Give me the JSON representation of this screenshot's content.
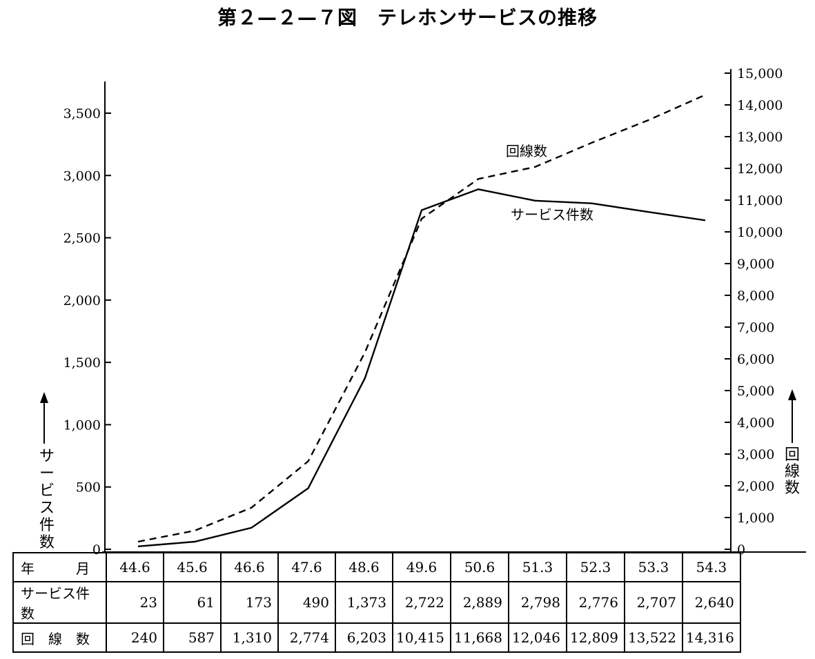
{
  "title": "第２—２—７図　テレホンサービスの推移",
  "chart_data": {
    "type": "line",
    "categories": [
      "44.6",
      "45.6",
      "46.6",
      "47.6",
      "48.6",
      "49.6",
      "50.6",
      "51.3",
      "52.3",
      "53.3",
      "54.3"
    ],
    "series": [
      {
        "name": "サービス件数",
        "axis": "left",
        "style": "solid",
        "values": [
          23,
          61,
          173,
          490,
          1373,
          2722,
          2889,
          2798,
          2776,
          2707,
          2640
        ]
      },
      {
        "name": "回線数",
        "axis": "right",
        "style": "dashed",
        "values": [
          240,
          587,
          1310,
          2774,
          6203,
          10415,
          11668,
          12046,
          12809,
          13522,
          14316
        ]
      }
    ],
    "y_left": {
      "label": "サービス件数",
      "ticks": [
        0,
        500,
        1000,
        1500,
        2000,
        2500,
        3000,
        3500
      ],
      "tick_labels": [
        "0",
        "500",
        "1,000",
        "1,500",
        "2,000",
        "2,500",
        "3,000",
        "3,500"
      ],
      "ylim": [
        0,
        3750
      ]
    },
    "y_right": {
      "label": "回線数",
      "ticks": [
        0,
        1000,
        2000,
        3000,
        4000,
        5000,
        6000,
        7000,
        8000,
        9000,
        10000,
        11000,
        12000,
        13000,
        14000,
        15000
      ],
      "tick_labels": [
        "0",
        "1,000",
        "2,000",
        "3,000",
        "4,000",
        "5,000",
        "6,000",
        "7,000",
        "8,000",
        "9,000",
        "10,000",
        "11,000",
        "12,000",
        "13,000",
        "14,000",
        "15,000"
      ],
      "ylim": [
        0,
        15000
      ]
    },
    "grid": false
  },
  "table": {
    "header_label": "年　　　月",
    "months": [
      "44.6",
      "45.6",
      "46.6",
      "47.6",
      "48.6",
      "49.6",
      "50.6",
      "51.3",
      "52.3",
      "53.3",
      "54.3"
    ],
    "rows": [
      {
        "label": "サービス件数",
        "values": [
          "23",
          "61",
          "173",
          "490",
          "1,373",
          "2,722",
          "2,889",
          "2,798",
          "2,776",
          "2,707",
          "2,640"
        ]
      },
      {
        "label": "回　線　数",
        "values": [
          "240",
          "587",
          "1,310",
          "2,774",
          "6,203",
          "10,415",
          "11,668",
          "12,046",
          "12,809",
          "13,522",
          "14,316"
        ]
      }
    ]
  }
}
